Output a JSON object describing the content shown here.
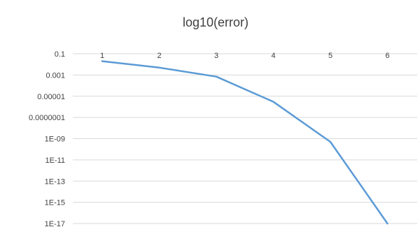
{
  "chart_data": {
    "type": "line",
    "title": "log10(error)",
    "y_scale": "log10",
    "y_axis_reversed": true,
    "x_axis_position": "top",
    "ylim": [
      0.1,
      1e-17
    ],
    "y_ticks": [
      "0.1",
      "0.001",
      "0.00001",
      "0.0000001",
      "1E-09",
      "1E-11",
      "1E-13",
      "1E-15",
      "1E-17"
    ],
    "y_tick_values": [
      0.1,
      0.001,
      1e-05,
      1e-07,
      1e-09,
      1e-11,
      1e-13,
      1e-15,
      1e-17
    ],
    "categories": [
      "1",
      "2",
      "3",
      "4",
      "5",
      "6"
    ],
    "series": [
      {
        "values": [
          0.02,
          0.005,
          0.0007,
          3e-06,
          5e-10,
          1e-17
        ]
      }
    ],
    "grid": true,
    "legend": "none",
    "colors": {
      "series": "#5b9bd5",
      "grid": "#d9d9d9",
      "text": "#404040"
    }
  }
}
